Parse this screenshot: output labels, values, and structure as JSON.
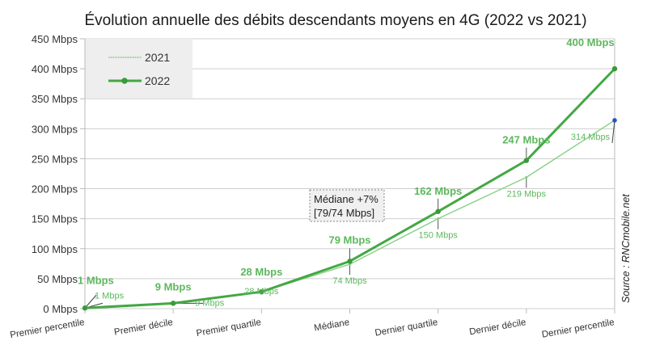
{
  "chart_data": {
    "type": "line",
    "title": "Évolution annuelle des débits descendants moyens en 4G (2022 vs 2021)",
    "xlabel": "",
    "ylabel": "",
    "categories": [
      "Premier percentile",
      "Premier décile",
      "Premier quartile",
      "Médiane",
      "Dernier quartile",
      "Dernier décile",
      "Dernier percentile"
    ],
    "ylim": [
      0,
      450
    ],
    "yticks": [
      0,
      50,
      100,
      150,
      200,
      250,
      300,
      350,
      400,
      450
    ],
    "ytick_labels": [
      "0 Mbps",
      "50 Mbps",
      "100 Mbps",
      "150 Mbps",
      "200 Mbps",
      "250 Mbps",
      "300 Mbps",
      "350 Mbps",
      "400 Mbps",
      "450 Mbps"
    ],
    "grid": true,
    "legend_position": "top-left",
    "series": [
      {
        "name": "2021",
        "values": [
          1,
          9,
          28,
          74,
          150,
          219,
          314
        ],
        "labels": [
          "1 Mbps",
          "9 Mbps",
          "28 Mbps",
          "74 Mbps",
          "150 Mbps",
          "219 Mbps",
          "314 Mbps"
        ],
        "color": "#7fcf7f"
      },
      {
        "name": "2022",
        "values": [
          1,
          9,
          28,
          79,
          162,
          247,
          400
        ],
        "labels": [
          "1 Mbps",
          "9 Mbps",
          "28 Mbps",
          "79 Mbps",
          "162 Mbps",
          "247 Mbps",
          "400 Mbps"
        ],
        "color": "#4caf50"
      }
    ],
    "annotations": [
      {
        "text_lines": [
          "Médiane +7%",
          "[79/74 Mbps]"
        ],
        "near": "Médiane"
      }
    ],
    "source": "Source : RNCmobile.net"
  },
  "colors": {
    "line_2022": "#43a843",
    "line_2021": "#86d086",
    "label": "#5cb85c",
    "grid": "#c8c8c8",
    "legend_bg": "#eeeeee",
    "last_point_2021": "#2255cc"
  }
}
